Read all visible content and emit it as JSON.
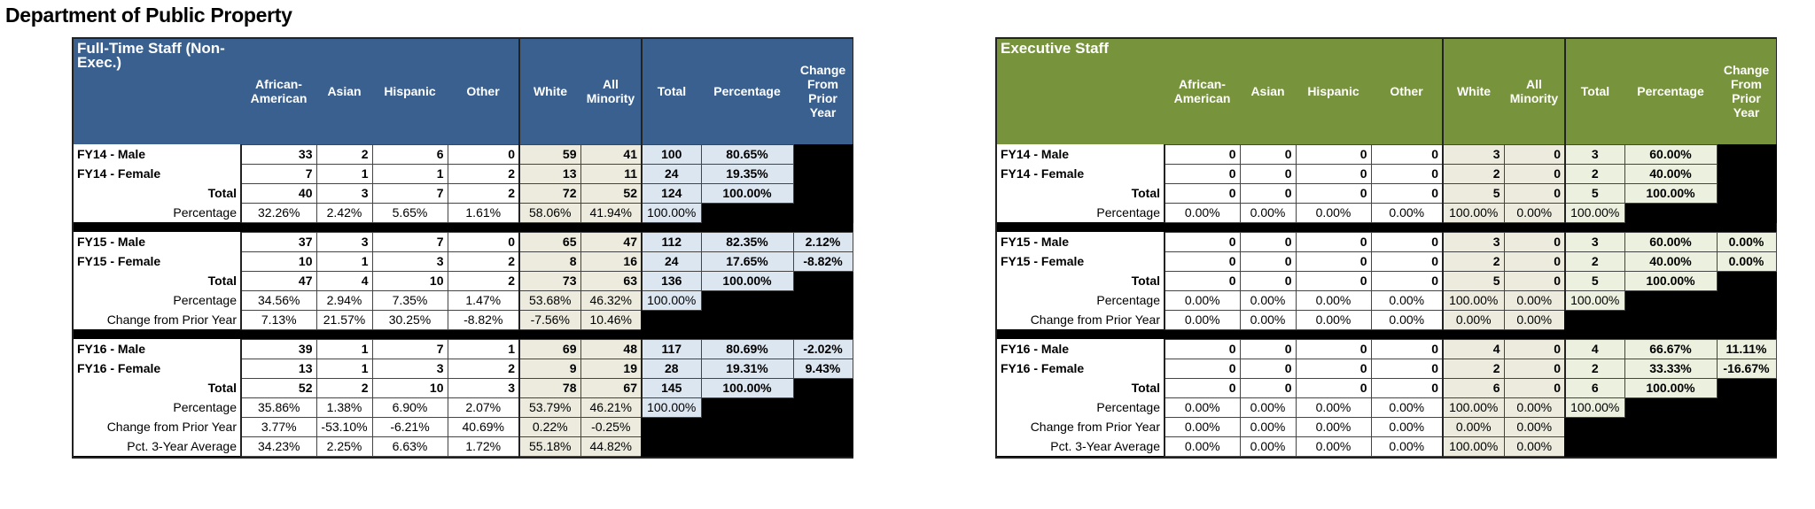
{
  "page_title": "Department of Public Property",
  "columns": {
    "african_american": "African-American",
    "asian": "Asian",
    "hispanic": "Hispanic",
    "other": "Other",
    "white": "White",
    "all_minority": "All Minority",
    "total": "Total",
    "percentage": "Percentage",
    "change": "Change From Prior Year"
  },
  "tables": [
    {
      "title": "Full-Time Staff (Non-Exec.)",
      "header_color": "#3a6090",
      "sections": [
        {
          "rows": [
            {
              "label": "FY14 - Male",
              "kind": "count",
              "align": "l",
              "race": [
                "33",
                "2",
                "6",
                "0"
              ],
              "wm": [
                "59",
                "41"
              ],
              "total": "100",
              "pct": "80.65%",
              "change": ""
            },
            {
              "label": "FY14 - Female",
              "kind": "count",
              "align": "l",
              "race": [
                "7",
                "1",
                "1",
                "2"
              ],
              "wm": [
                "13",
                "11"
              ],
              "total": "24",
              "pct": "19.35%",
              "change": ""
            },
            {
              "label": "Total",
              "kind": "count",
              "align": "r",
              "race": [
                "40",
                "3",
                "7",
                "2"
              ],
              "wm": [
                "72",
                "52"
              ],
              "total": "124",
              "pct": "100.00%",
              "change": ""
            },
            {
              "label": "Percentage",
              "kind": "pct",
              "align": "r",
              "race": [
                "32.26%",
                "2.42%",
                "5.65%",
                "1.61%"
              ],
              "wm": [
                "58.06%",
                "41.94%"
              ],
              "total": "100.00%",
              "pct": "",
              "change": ""
            }
          ]
        },
        {
          "rows": [
            {
              "label": "FY15 - Male",
              "kind": "count",
              "align": "l",
              "race": [
                "37",
                "3",
                "7",
                "0"
              ],
              "wm": [
                "65",
                "47"
              ],
              "total": "112",
              "pct": "82.35%",
              "change": "2.12%"
            },
            {
              "label": "FY15 - Female",
              "kind": "count",
              "align": "l",
              "race": [
                "10",
                "1",
                "3",
                "2"
              ],
              "wm": [
                "8",
                "16"
              ],
              "total": "24",
              "pct": "17.65%",
              "change": "-8.82%"
            },
            {
              "label": "Total",
              "kind": "count",
              "align": "r",
              "race": [
                "47",
                "4",
                "10",
                "2"
              ],
              "wm": [
                "73",
                "63"
              ],
              "total": "136",
              "pct": "100.00%",
              "change": ""
            },
            {
              "label": "Percentage",
              "kind": "pct",
              "align": "r",
              "race": [
                "34.56%",
                "2.94%",
                "7.35%",
                "1.47%"
              ],
              "wm": [
                "53.68%",
                "46.32%"
              ],
              "total": "100.00%",
              "pct": "",
              "change": ""
            },
            {
              "label": "Change from Prior Year",
              "kind": "pct",
              "align": "r",
              "race": [
                "7.13%",
                "21.57%",
                "30.25%",
                "-8.82%"
              ],
              "wm": [
                "-7.56%",
                "10.46%"
              ],
              "total": "",
              "pct": "",
              "change": ""
            }
          ]
        },
        {
          "rows": [
            {
              "label": "FY16 - Male",
              "kind": "count",
              "align": "l",
              "race": [
                "39",
                "1",
                "7",
                "1"
              ],
              "wm": [
                "69",
                "48"
              ],
              "total": "117",
              "pct": "80.69%",
              "change": "-2.02%"
            },
            {
              "label": "FY16 - Female",
              "kind": "count",
              "align": "l",
              "race": [
                "13",
                "1",
                "3",
                "2"
              ],
              "wm": [
                "9",
                "19"
              ],
              "total": "28",
              "pct": "19.31%",
              "change": "9.43%"
            },
            {
              "label": "Total",
              "kind": "count",
              "align": "r",
              "race": [
                "52",
                "2",
                "10",
                "3"
              ],
              "wm": [
                "78",
                "67"
              ],
              "total": "145",
              "pct": "100.00%",
              "change": ""
            },
            {
              "label": "Percentage",
              "kind": "pct",
              "align": "r",
              "race": [
                "35.86%",
                "1.38%",
                "6.90%",
                "2.07%"
              ],
              "wm": [
                "53.79%",
                "46.21%"
              ],
              "total": "100.00%",
              "pct": "",
              "change": ""
            },
            {
              "label": "Change from Prior Year",
              "kind": "pct",
              "align": "r",
              "race": [
                "3.77%",
                "-53.10%",
                "-6.21%",
                "40.69%"
              ],
              "wm": [
                "0.22%",
                "-0.25%"
              ],
              "total": "",
              "pct": "",
              "change": ""
            },
            {
              "label": "Pct. 3-Year Average",
              "kind": "pct",
              "align": "r",
              "race": [
                "34.23%",
                "2.25%",
                "6.63%",
                "1.72%"
              ],
              "wm": [
                "55.18%",
                "44.82%"
              ],
              "total": "",
              "pct": "",
              "change": ""
            }
          ]
        }
      ]
    },
    {
      "title": "Executive Staff",
      "header_color": "#77933c",
      "sections": [
        {
          "rows": [
            {
              "label": "FY14 - Male",
              "kind": "count",
              "align": "l",
              "race": [
                "0",
                "0",
                "0",
                "0"
              ],
              "wm": [
                "3",
                "0"
              ],
              "total": "3",
              "pct": "60.00%",
              "change": ""
            },
            {
              "label": "FY14 - Female",
              "kind": "count",
              "align": "l",
              "race": [
                "0",
                "0",
                "0",
                "0"
              ],
              "wm": [
                "2",
                "0"
              ],
              "total": "2",
              "pct": "40.00%",
              "change": ""
            },
            {
              "label": "Total",
              "kind": "count",
              "align": "r",
              "race": [
                "0",
                "0",
                "0",
                "0"
              ],
              "wm": [
                "5",
                "0"
              ],
              "total": "5",
              "pct": "100.00%",
              "change": ""
            },
            {
              "label": "Percentage",
              "kind": "pct",
              "align": "r",
              "race": [
                "0.00%",
                "0.00%",
                "0.00%",
                "0.00%"
              ],
              "wm": [
                "100.00%",
                "0.00%"
              ],
              "total": "100.00%",
              "pct": "",
              "change": ""
            }
          ]
        },
        {
          "rows": [
            {
              "label": "FY15 - Male",
              "kind": "count",
              "align": "l",
              "race": [
                "0",
                "0",
                "0",
                "0"
              ],
              "wm": [
                "3",
                "0"
              ],
              "total": "3",
              "pct": "60.00%",
              "change": "0.00%"
            },
            {
              "label": "FY15 - Female",
              "kind": "count",
              "align": "l",
              "race": [
                "0",
                "0",
                "0",
                "0"
              ],
              "wm": [
                "2",
                "0"
              ],
              "total": "2",
              "pct": "40.00%",
              "change": "0.00%"
            },
            {
              "label": "Total",
              "kind": "count",
              "align": "r",
              "race": [
                "0",
                "0",
                "0",
                "0"
              ],
              "wm": [
                "5",
                "0"
              ],
              "total": "5",
              "pct": "100.00%",
              "change": ""
            },
            {
              "label": "Percentage",
              "kind": "pct",
              "align": "r",
              "race": [
                "0.00%",
                "0.00%",
                "0.00%",
                "0.00%"
              ],
              "wm": [
                "100.00%",
                "0.00%"
              ],
              "total": "100.00%",
              "pct": "",
              "change": ""
            },
            {
              "label": "Change from Prior Year",
              "kind": "pct",
              "align": "r",
              "race": [
                "0.00%",
                "0.00%",
                "0.00%",
                "0.00%"
              ],
              "wm": [
                "0.00%",
                "0.00%"
              ],
              "total": "",
              "pct": "",
              "change": ""
            }
          ]
        },
        {
          "rows": [
            {
              "label": "FY16 - Male",
              "kind": "count",
              "align": "l",
              "race": [
                "0",
                "0",
                "0",
                "0"
              ],
              "wm": [
                "4",
                "0"
              ],
              "total": "4",
              "pct": "66.67%",
              "change": "11.11%"
            },
            {
              "label": "FY16 - Female",
              "kind": "count",
              "align": "l",
              "race": [
                "0",
                "0",
                "0",
                "0"
              ],
              "wm": [
                "2",
                "0"
              ],
              "total": "2",
              "pct": "33.33%",
              "change": "-16.67%"
            },
            {
              "label": "Total",
              "kind": "count",
              "align": "r",
              "race": [
                "0",
                "0",
                "0",
                "0"
              ],
              "wm": [
                "6",
                "0"
              ],
              "total": "6",
              "pct": "100.00%",
              "change": ""
            },
            {
              "label": "Percentage",
              "kind": "pct",
              "align": "r",
              "race": [
                "0.00%",
                "0.00%",
                "0.00%",
                "0.00%"
              ],
              "wm": [
                "100.00%",
                "0.00%"
              ],
              "total": "100.00%",
              "pct": "",
              "change": ""
            },
            {
              "label": "Change from Prior Year",
              "kind": "pct",
              "align": "r",
              "race": [
                "0.00%",
                "0.00%",
                "0.00%",
                "0.00%"
              ],
              "wm": [
                "0.00%",
                "0.00%"
              ],
              "total": "",
              "pct": "",
              "change": ""
            },
            {
              "label": "Pct. 3-Year Average",
              "kind": "pct",
              "align": "r",
              "race": [
                "0.00%",
                "0.00%",
                "0.00%",
                "0.00%"
              ],
              "wm": [
                "100.00%",
                "0.00%"
              ],
              "total": "",
              "pct": "",
              "change": ""
            }
          ]
        }
      ]
    }
  ]
}
